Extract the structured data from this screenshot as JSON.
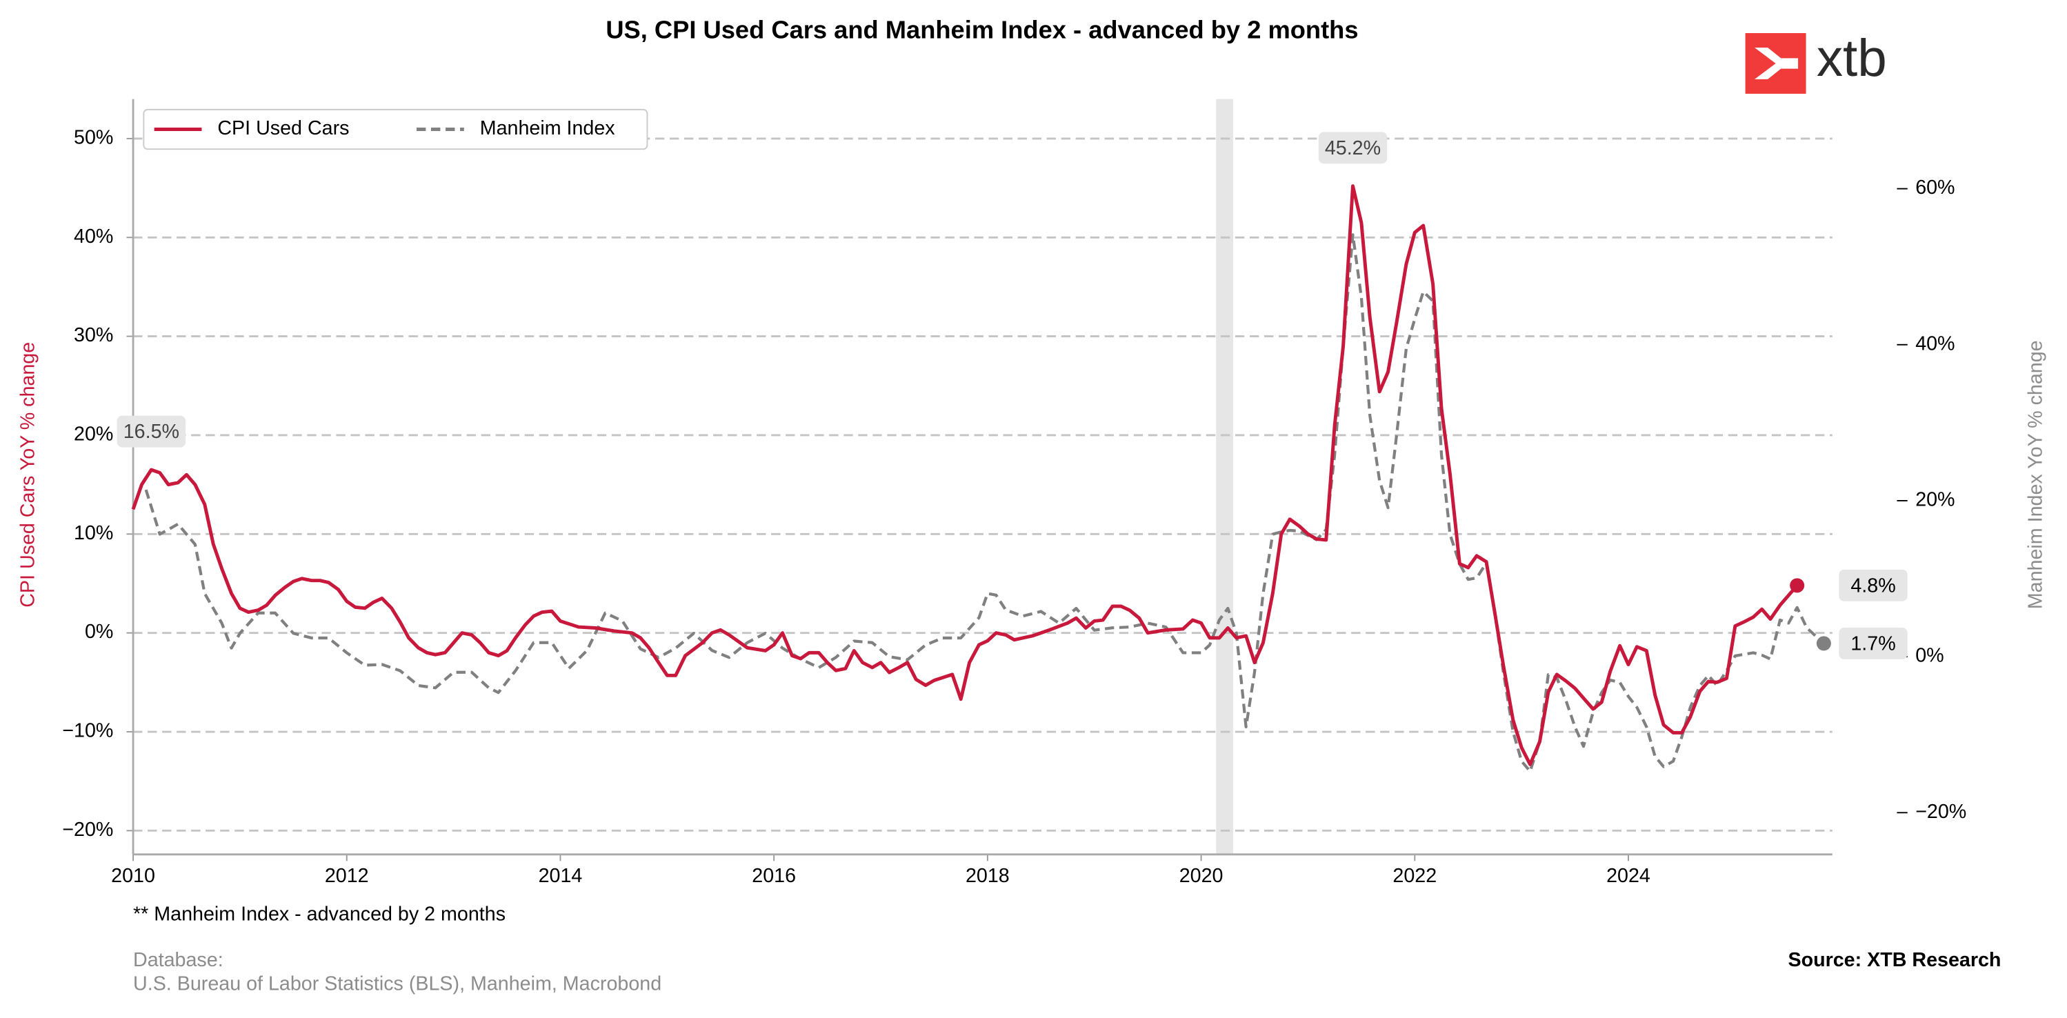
{
  "chart_data": {
    "type": "line",
    "title": "US, CPI Used Cars and Manheim Index - advanced by 2 months",
    "ylabel": "CPI Used Cars YoY % change",
    "y2label": "Manheim Index YoY % change",
    "xlim": [
      2010,
      2025.91
    ],
    "xticks": [
      2010,
      2012,
      2014,
      2016,
      2018,
      2020,
      2022,
      2024
    ],
    "ylim": [
      -22.4,
      54
    ],
    "yticks": [
      {
        "value": -20,
        "label": "−20%"
      },
      {
        "value": -10,
        "label": "−10%"
      },
      {
        "value": 0,
        "label": "0%"
      },
      {
        "value": 10,
        "label": "10%"
      },
      {
        "value": 20,
        "label": "20%"
      },
      {
        "value": 30,
        "label": "30%"
      },
      {
        "value": 40,
        "label": "40%"
      },
      {
        "value": 50,
        "label": "50%"
      }
    ],
    "y2lim": [
      -25.35,
      71.5
    ],
    "y2ticks": [
      {
        "value": -20,
        "label": "−20%"
      },
      {
        "value": 0,
        "label": "0%"
      },
      {
        "value": 20,
        "label": "20%"
      },
      {
        "value": 40,
        "label": "40%"
      },
      {
        "value": 60,
        "label": "60%"
      }
    ],
    "grid": true,
    "legend": "upper left",
    "shaded_x": [
      2020.14,
      2020.3
    ],
    "series": [
      {
        "name": "CPI Used Cars",
        "color": "#c8193c",
        "dashed": false,
        "end_marker": true,
        "x": [
          2010.0,
          2010.08,
          2010.17,
          2010.25,
          2010.33,
          2010.42,
          2010.5,
          2010.58,
          2010.67,
          2010.75,
          2010.83,
          2010.92,
          2011.0,
          2011.08,
          2011.17,
          2011.25,
          2011.33,
          2011.42,
          2011.5,
          2011.58,
          2011.67,
          2011.75,
          2011.83,
          2011.92,
          2012.0,
          2012.08,
          2012.17,
          2012.25,
          2012.33,
          2012.42,
          2012.5,
          2012.58,
          2012.67,
          2012.75,
          2012.83,
          2012.92,
          2013.0,
          2013.08,
          2013.17,
          2013.25,
          2013.33,
          2013.42,
          2013.5,
          2013.58,
          2013.67,
          2013.75,
          2013.83,
          2013.92,
          2014.0,
          2014.17,
          2014.33,
          2014.5,
          2014.67,
          2014.75,
          2014.83,
          2014.92,
          2015.0,
          2015.08,
          2015.17,
          2015.33,
          2015.42,
          2015.5,
          2015.58,
          2015.75,
          2015.92,
          2016.0,
          2016.08,
          2016.17,
          2016.25,
          2016.33,
          2016.42,
          2016.5,
          2016.58,
          2016.67,
          2016.75,
          2016.83,
          2016.92,
          2017.0,
          2017.08,
          2017.17,
          2017.25,
          2017.33,
          2017.42,
          2017.5,
          2017.67,
          2017.75,
          2017.83,
          2017.92,
          2018.0,
          2018.08,
          2018.17,
          2018.25,
          2018.42,
          2018.58,
          2018.75,
          2018.83,
          2018.92,
          2019.0,
          2019.08,
          2019.17,
          2019.25,
          2019.33,
          2019.42,
          2019.5,
          2019.67,
          2019.83,
          2019.92,
          2020.0,
          2020.08,
          2020.17,
          2020.25,
          2020.33,
          2020.42,
          2020.5,
          2020.58,
          2020.67,
          2020.75,
          2020.83,
          2020.92,
          2021.0,
          2021.08,
          2021.17,
          2021.25,
          2021.33,
          2021.42,
          2021.5,
          2021.58,
          2021.67,
          2021.75,
          2021.83,
          2021.92,
          2022.0,
          2022.08,
          2022.17,
          2022.25,
          2022.33,
          2022.42,
          2022.5,
          2022.58,
          2022.67,
          2022.75,
          2022.83,
          2022.92,
          2023.0,
          2023.08,
          2023.17,
          2023.25,
          2023.33,
          2023.42,
          2023.5,
          2023.58,
          2023.67,
          2023.75,
          2023.83,
          2023.92,
          2024.0,
          2024.08,
          2024.17,
          2024.25,
          2024.33,
          2024.42,
          2024.5,
          2024.58,
          2024.67,
          2024.75,
          2024.83,
          2024.92,
          2025.0,
          2025.08,
          2025.17,
          2025.25,
          2025.33,
          2025.42,
          2025.58
        ],
        "values": [
          12.5,
          15,
          16.5,
          16.2,
          15,
          15.2,
          16,
          15,
          13,
          9,
          6.5,
          4,
          2.5,
          2.1,
          2.3,
          2.8,
          3.8,
          4.6,
          5.2,
          5.5,
          5.3,
          5.3,
          5.1,
          4.4,
          3.2,
          2.6,
          2.5,
          3.1,
          3.5,
          2.5,
          1.1,
          -0.5,
          -1.5,
          -2,
          -2.2,
          -2,
          -1,
          0,
          -0.2,
          -1,
          -2,
          -2.3,
          -1.8,
          -0.5,
          0.8,
          1.7,
          2.1,
          2.2,
          1.2,
          0.6,
          0.5,
          0.2,
          0,
          -0.5,
          -1.5,
          -3,
          -4.3,
          -4.3,
          -2.3,
          -1,
          0,
          0.3,
          -0.2,
          -1.5,
          -1.8,
          -1.2,
          0,
          -2.3,
          -2.6,
          -2,
          -2,
          -3,
          -3.8,
          -3.6,
          -1.8,
          -3,
          -3.5,
          -3,
          -4,
          -3.5,
          -3,
          -4.7,
          -5.3,
          -4.8,
          -4.2,
          -6.7,
          -3,
          -1.2,
          -0.8,
          0,
          -0.2,
          -0.7,
          -0.3,
          0.3,
          1.0,
          1.5,
          0.5,
          1.2,
          1.3,
          2.7,
          2.7,
          2.3,
          1.5,
          0,
          0.3,
          0.4,
          1.3,
          1.0,
          -0.5,
          -0.5,
          0.5,
          -0.5,
          -0.3,
          -3,
          -1,
          4,
          10,
          11.5,
          10.8,
          10,
          9.5,
          9.4,
          21,
          29,
          45.2,
          41.5,
          31.9,
          24.4,
          26.4,
          31.4,
          37.3,
          40.5,
          41.2,
          35.3,
          22.7,
          16.1,
          7.0,
          6.6,
          7.8,
          7.2,
          2.0,
          -3.3,
          -8.8,
          -11.6,
          -13.3,
          -11,
          -6,
          -4.2,
          -4.9,
          -5.6,
          -6.6,
          -7.7,
          -7,
          -3.9,
          -1.3,
          -3.2,
          -1.4,
          -1.8,
          -6.3,
          -9.3,
          -10.1,
          -10.1,
          -8.5,
          -5.9,
          -4.9,
          -5,
          -4.6,
          0.7,
          1.1,
          1.6,
          2.4,
          1.4,
          2.8,
          4.8
        ]
      },
      {
        "name": "Manheim Index",
        "color": "#808080",
        "dashed": true,
        "end_marker": true,
        "axis": "y2",
        "x": [
          2010.12,
          2010.25,
          2010.42,
          2010.58,
          2010.67,
          2010.83,
          2010.92,
          2011.0,
          2011.17,
          2011.33,
          2011.5,
          2011.67,
          2011.83,
          2012.0,
          2012.17,
          2012.33,
          2012.5,
          2012.67,
          2012.83,
          2013.0,
          2013.17,
          2013.33,
          2013.42,
          2013.58,
          2013.75,
          2013.92,
          2014.08,
          2014.25,
          2014.42,
          2014.58,
          2014.75,
          2014.92,
          2015.08,
          2015.25,
          2015.42,
          2015.58,
          2015.75,
          2015.92,
          2016.08,
          2016.25,
          2016.42,
          2016.58,
          2016.75,
          2016.92,
          2017.08,
          2017.25,
          2017.42,
          2017.58,
          2017.75,
          2017.92,
          2018.0,
          2018.08,
          2018.17,
          2018.33,
          2018.5,
          2018.67,
          2018.83,
          2019.0,
          2019.17,
          2019.33,
          2019.5,
          2019.67,
          2019.83,
          2020.0,
          2020.08,
          2020.17,
          2020.25,
          2020.33,
          2020.42,
          2020.5,
          2020.58,
          2020.67,
          2020.75,
          2020.83,
          2020.92,
          2021.08,
          2021.17,
          2021.25,
          2021.33,
          2021.42,
          2021.5,
          2021.58,
          2021.67,
          2021.75,
          2021.83,
          2021.92,
          2022.0,
          2022.08,
          2022.17,
          2022.25,
          2022.33,
          2022.42,
          2022.5,
          2022.58,
          2022.67,
          2022.75,
          2022.83,
          2022.92,
          2023.0,
          2023.08,
          2023.17,
          2023.25,
          2023.33,
          2023.42,
          2023.5,
          2023.58,
          2023.67,
          2023.75,
          2023.83,
          2023.92,
          2024.0,
          2024.08,
          2024.17,
          2024.25,
          2024.33,
          2024.42,
          2024.5,
          2024.58,
          2024.67,
          2024.75,
          2024.83,
          2024.92,
          2025.0,
          2025.17,
          2025.25,
          2025.33,
          2025.42,
          2025.5,
          2025.58,
          2025.67,
          2025.83
        ],
        "values": [
          21.4,
          15.7,
          17.0,
          14.4,
          8.1,
          4.3,
          1.1,
          3.0,
          5.6,
          5.6,
          3.0,
          2.4,
          2.4,
          0.5,
          -1.1,
          -1.0,
          -1.8,
          -3.7,
          -4.0,
          -2.0,
          -2.0,
          -4.0,
          -4.6,
          -1.8,
          1.8,
          1.8,
          -1.5,
          0.8,
          5.6,
          4.6,
          1.0,
          -0.1,
          1.1,
          3.0,
          0.8,
          -0.1,
          1.8,
          3.0,
          1.1,
          -0.3,
          -1.4,
          -0.1,
          2.0,
          1.8,
          0.0,
          -0.4,
          1.5,
          2.4,
          2.4,
          5.0,
          8.1,
          7.9,
          6.0,
          5.2,
          5.8,
          4.3,
          6.2,
          3.4,
          3.7,
          3.8,
          4.3,
          3.8,
          0.5,
          0.5,
          1.5,
          4.7,
          6.2,
          3.0,
          -9.0,
          -2.0,
          8.1,
          15.7,
          16.0,
          16.2,
          16.1,
          15.0,
          16.3,
          25.9,
          39.8,
          54.1,
          46.1,
          30.9,
          22.6,
          19.1,
          28.4,
          39.5,
          43.3,
          46.8,
          45.6,
          25.9,
          15.7,
          11.9,
          9.9,
          10.1,
          12.0,
          5.6,
          -2.0,
          -9.6,
          -13.4,
          -14.7,
          -10.9,
          -2.3,
          -2.7,
          -5.8,
          -9.0,
          -11.5,
          -7.1,
          -4.6,
          -3.0,
          -3.3,
          -5.1,
          -6.5,
          -9.0,
          -12.8,
          -14.1,
          -13.4,
          -10.3,
          -6.5,
          -3.7,
          -2.4,
          -3.7,
          -1.8,
          0.1,
          0.5,
          0.2,
          -0.3,
          4.7,
          4.3,
          6.3,
          3.7,
          1.7
        ]
      }
    ],
    "annotations": [
      {
        "text": "16.5%",
        "x": 2010.17,
        "y": 16.5,
        "placement": "above"
      },
      {
        "text": "45.2%",
        "x": 2021.42,
        "y": 45.2,
        "placement": "above"
      },
      {
        "text": "4.8%",
        "x": 2025.58,
        "y": 4.8,
        "placement": "right"
      },
      {
        "text": "1.7%",
        "x": 2025.83,
        "y": 1.7,
        "axis": "y2",
        "placement": "right"
      }
    ],
    "logo": "xtb",
    "footnote": "** Manheim Index - advanced by 2 months",
    "database_title": "Database:",
    "database": "U.S. Bureau of Labor Statistics (BLS), Manheim, Macrobond",
    "source": "Source: XTB Research"
  }
}
